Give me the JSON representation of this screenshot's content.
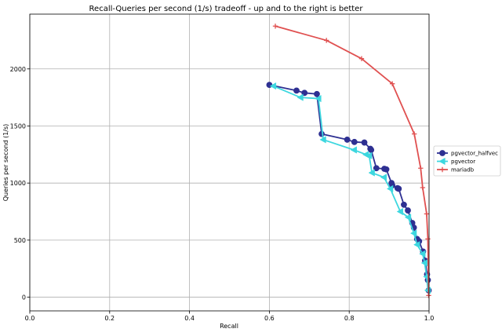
{
  "chart_data": {
    "type": "line",
    "title": "Recall-Queries per second (1/s) tradeoff - up and to the right is better",
    "xlabel": "Recall",
    "ylabel": "Queries per second (1/s)",
    "xlim": [
      0.0,
      1.0
    ],
    "ylim": [
      -120,
      2480
    ],
    "xticks": [
      "0.0",
      "0.2",
      "0.4",
      "0.6",
      "0.8",
      "1.0"
    ],
    "xtick_values": [
      0.0,
      0.2,
      0.4,
      0.6,
      0.8,
      1.0
    ],
    "yticks": [
      "0",
      "500",
      "1000",
      "1500",
      "2000"
    ],
    "ytick_values": [
      0,
      500,
      1000,
      1500,
      2000
    ],
    "grid": true,
    "legend_position": "right",
    "series": [
      {
        "name": "pgvector_halfvec",
        "color": "#2e3092",
        "marker": "circle",
        "x": [
          0.6,
          0.668,
          0.688,
          0.719,
          0.731,
          0.795,
          0.813,
          0.838,
          0.853,
          0.855,
          0.868,
          0.888,
          0.893,
          0.906,
          0.908,
          0.921,
          0.924,
          0.937,
          0.947,
          0.958,
          0.962,
          0.97,
          0.975,
          0.985,
          0.99,
          0.995,
          0.997,
          0.999
        ],
        "y": [
          1860,
          1810,
          1790,
          1780,
          1430,
          1380,
          1360,
          1355,
          1300,
          1290,
          1130,
          1125,
          1120,
          1000,
          980,
          955,
          950,
          810,
          760,
          650,
          610,
          510,
          490,
          400,
          320,
          200,
          150,
          60
        ]
      },
      {
        "name": "pgvector",
        "color": "#3dd7df",
        "marker": "triangle-left",
        "x": [
          0.61,
          0.678,
          0.723,
          0.735,
          0.812,
          0.842,
          0.85,
          0.857,
          0.887,
          0.903,
          0.928,
          0.948,
          0.962,
          0.97,
          0.984,
          0.989,
          0.994,
          0.997
        ],
        "y": [
          1850,
          1750,
          1740,
          1380,
          1290,
          1250,
          1240,
          1090,
          1050,
          950,
          750,
          700,
          560,
          460,
          380,
          300,
          180,
          60
        ]
      },
      {
        "name": "mariadb",
        "color": "#e05050",
        "marker": "plus",
        "x": [
          0.615,
          0.743,
          0.831,
          0.908,
          0.963,
          0.979,
          0.984,
          0.994,
          0.997,
          0.999
        ],
        "y": [
          2375,
          2250,
          2090,
          1870,
          1430,
          1130,
          960,
          730,
          510,
          15
        ]
      }
    ]
  }
}
